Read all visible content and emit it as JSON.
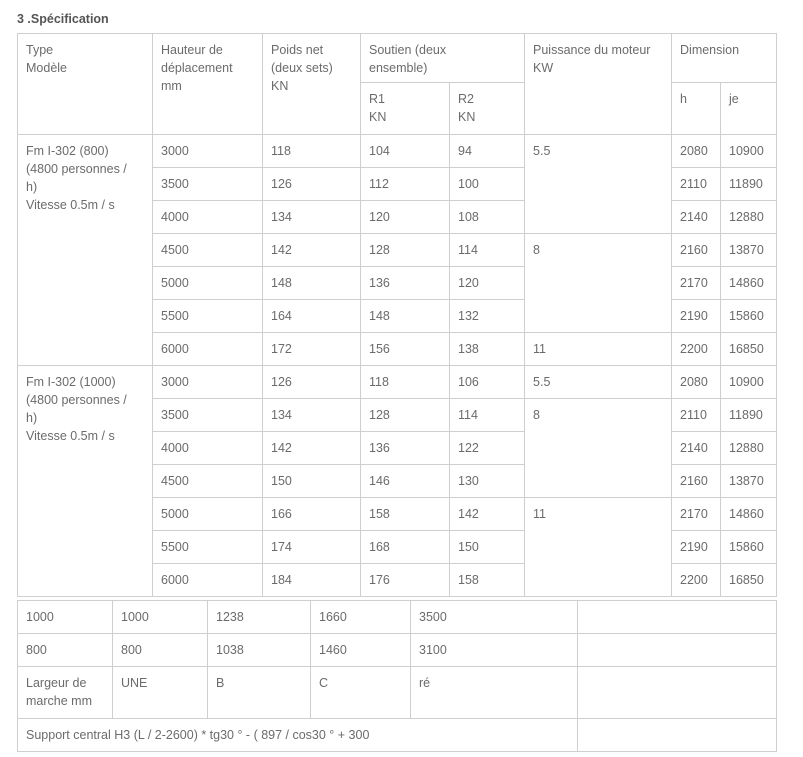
{
  "title": "3 .Spécification",
  "header": {
    "type": "Type Modèle",
    "type_lines": [
      "Type",
      "Modèle"
    ],
    "height_lines": [
      "Hauteur de",
      "déplacement",
      "mm"
    ],
    "weight_lines": [
      "Poids net",
      "(deux sets)",
      "KN"
    ],
    "support_lines": [
      "Soutien (deux",
      "ensemble)"
    ],
    "r1_lines": [
      "R1",
      "KN"
    ],
    "r2_lines": [
      "R2",
      "KN"
    ],
    "power_lines": [
      "Puissance du moteur",
      "KW"
    ],
    "dimension": "Dimension",
    "dim_h": "h",
    "dim_je": "je"
  },
  "groups": [
    {
      "model_lines": [
        "Fm I-302 (800)",
        "(4800 personnes /",
        "h)",
        "Vitesse 0.5m / s"
      ],
      "rows": [
        {
          "height": "3000",
          "weight": "118",
          "r1": "104",
          "r2": "94",
          "power": "5.5",
          "h": "2080",
          "je": "10900"
        },
        {
          "height": "3500",
          "weight": "126",
          "r1": "112",
          "r2": "100",
          "power": null,
          "h": "2110",
          "je": "11890"
        },
        {
          "height": "4000",
          "weight": "134",
          "r1": "120",
          "r2": "108",
          "power": null,
          "h": "2140",
          "je": "12880"
        },
        {
          "height": "4500",
          "weight": "142",
          "r1": "128",
          "r2": "114",
          "power": "8",
          "h": "2160",
          "je": "13870"
        },
        {
          "height": "5000",
          "weight": "148",
          "r1": "136",
          "r2": "120",
          "power": null,
          "h": "2170",
          "je": "14860"
        },
        {
          "height": "5500",
          "weight": "164",
          "r1": "148",
          "r2": "132",
          "power": null,
          "h": "2190",
          "je": "15860"
        },
        {
          "height": "6000",
          "weight": "172",
          "r1": "156",
          "r2": "138",
          "power": "11",
          "h": "2200",
          "je": "16850"
        }
      ]
    },
    {
      "model_lines": [
        "Fm I-302 (1000)",
        "(4800 personnes /",
        "h)",
        "Vitesse 0.5m / s"
      ],
      "rows": [
        {
          "height": "3000",
          "weight": "126",
          "r1": "118",
          "r2": "106",
          "power": "5.5",
          "h": "2080",
          "je": "10900"
        },
        {
          "height": "3500",
          "weight": "134",
          "r1": "128",
          "r2": "114",
          "power": "8",
          "h": "2110",
          "je": "11890"
        },
        {
          "height": "4000",
          "weight": "142",
          "r1": "136",
          "r2": "122",
          "power": null,
          "h": "2140",
          "je": "12880"
        },
        {
          "height": "4500",
          "weight": "150",
          "r1": "146",
          "r2": "130",
          "power": null,
          "h": "2160",
          "je": "13870"
        },
        {
          "height": "5000",
          "weight": "166",
          "r1": "158",
          "r2": "142",
          "power": "11",
          "h": "2170",
          "je": "14860"
        },
        {
          "height": "5500",
          "weight": "174",
          "r1": "168",
          "r2": "150",
          "power": null,
          "h": "2190",
          "je": "15860"
        },
        {
          "height": "6000",
          "weight": "184",
          "r1": "176",
          "r2": "158",
          "power": null,
          "h": "2200",
          "je": "16850"
        }
      ]
    }
  ],
  "step_table": {
    "rows": [
      [
        "1000",
        "1000",
        "1238",
        "1660",
        "3500",
        ""
      ],
      [
        "800",
        "800",
        "1038",
        "1460",
        "3100",
        ""
      ],
      [
        "Largeur de marche mm",
        "UNE",
        "B",
        "C",
        "ré",
        ""
      ]
    ],
    "formula": "Support central H3 (L / 2-2600) * tg30 ° -  ( 897 / cos30 ° + 300"
  }
}
